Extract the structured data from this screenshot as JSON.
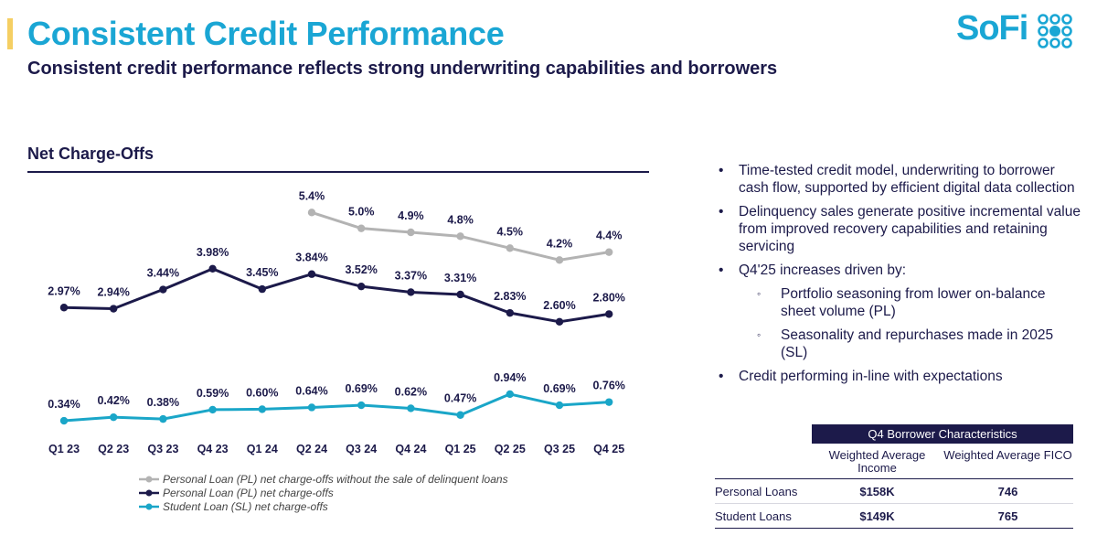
{
  "header": {
    "title": "Consistent Credit Performance",
    "subtitle": "Consistent credit performance reflects strong underwriting capabilities and borrowers",
    "logo_text": "SoFi",
    "accent_color": "#f5cf63",
    "brand_color": "#1aa6d4"
  },
  "chart_data": {
    "type": "line",
    "title": "Net Charge-Offs",
    "categories": [
      "Q1 23",
      "Q2 23",
      "Q3 23",
      "Q4 23",
      "Q1 24",
      "Q2 24",
      "Q3 24",
      "Q4 24",
      "Q1 25",
      "Q2 25",
      "Q3 25",
      "Q4 25"
    ],
    "series": [
      {
        "name": "Personal Loan (PL) net charge-offs without the sale of delinquent loans",
        "color": "#b3b3b3",
        "values": [
          null,
          null,
          null,
          null,
          null,
          5.4,
          5.0,
          4.9,
          4.8,
          4.5,
          4.2,
          4.4
        ],
        "labels": [
          "",
          "",
          "",
          "",
          "",
          "5.4%",
          "5.0%",
          "4.9%",
          "4.8%",
          "4.5%",
          "4.2%",
          "4.4%"
        ]
      },
      {
        "name": "Personal Loan (PL) net charge-offs",
        "color": "#1c1a4a",
        "values": [
          2.97,
          2.94,
          3.44,
          3.98,
          3.45,
          3.84,
          3.52,
          3.37,
          3.31,
          2.83,
          2.6,
          2.8
        ],
        "labels": [
          "2.97%",
          "2.94%",
          "3.44%",
          "3.98%",
          "3.45%",
          "3.84%",
          "3.52%",
          "3.37%",
          "3.31%",
          "2.83%",
          "2.60%",
          "2.80%"
        ]
      },
      {
        "name": "Student Loan (SL) net charge-offs",
        "color": "#1aa6c8",
        "values": [
          0.34,
          0.42,
          0.38,
          0.59,
          0.6,
          0.64,
          0.69,
          0.62,
          0.47,
          0.94,
          0.69,
          0.76
        ],
        "labels": [
          "0.34%",
          "0.42%",
          "0.38%",
          "0.59%",
          "0.60%",
          "0.64%",
          "0.69%",
          "0.62%",
          "0.47%",
          "0.94%",
          "0.69%",
          "0.76%"
        ]
      }
    ],
    "legend_position": "bottom",
    "grid": false
  },
  "bullets": {
    "items": [
      {
        "level": 1,
        "text": "Time-tested credit model, underwriting to borrower cash flow, supported by efficient digital data collection"
      },
      {
        "level": 1,
        "text": "Delinquency sales generate positive incremental value from improved recovery capabilities and retaining servicing"
      },
      {
        "level": 1,
        "text": "Q4'25 increases driven by:"
      },
      {
        "level": 2,
        "text": "Portfolio seasoning from lower on-balance sheet volume (PL)"
      },
      {
        "level": 2,
        "text": "Seasonality and repurchases made in 2025 (SL)"
      },
      {
        "level": 1,
        "text": "Credit performing in-line with expectations"
      }
    ]
  },
  "table": {
    "title": "Q4 Borrower Characteristics",
    "columns": [
      "Weighted Average Income",
      "Weighted Average FICO"
    ],
    "rows": [
      {
        "label": "Personal Loans",
        "income": "$158K",
        "fico": "746"
      },
      {
        "label": "Student Loans",
        "income": "$149K",
        "fico": "765"
      }
    ]
  }
}
